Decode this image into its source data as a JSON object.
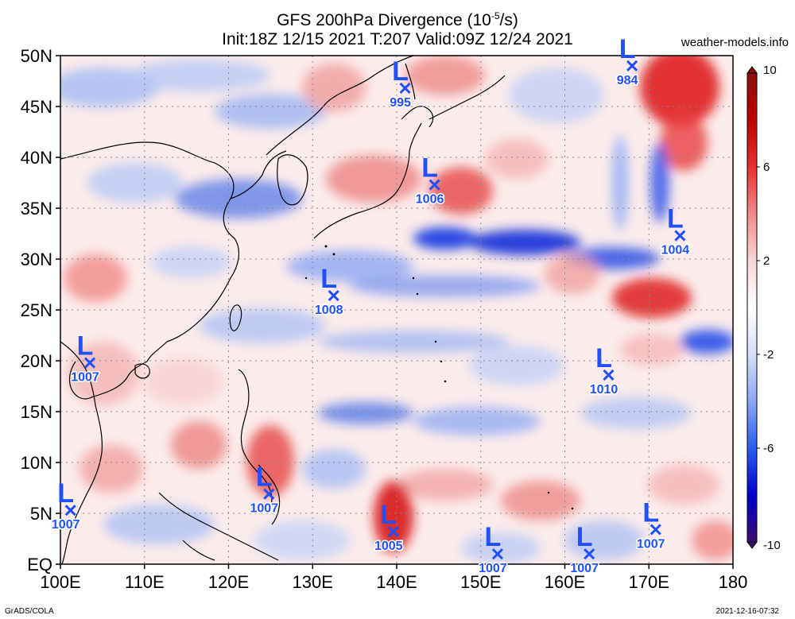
{
  "header": {
    "title_main": "GFS 200hPa Divergence (10",
    "title_exp": "-5",
    "title_unit": "/s)",
    "subtitle": "Init:18Z 12/15 2021 T:207 Valid:09Z 12/24 2021",
    "site": "weather-models.info"
  },
  "footer": {
    "credit": "GrADS/COLA",
    "timestamp": "2021-12-16-07:32"
  },
  "map": {
    "lon_range": [
      100,
      180
    ],
    "lat_range": [
      0,
      50
    ],
    "lon_labels": [
      "100E",
      "110E",
      "120E",
      "130E",
      "140E",
      "150E",
      "160E",
      "170E",
      "180"
    ],
    "lat_labels": [
      "EQ",
      "5N",
      "10N",
      "15N",
      "20N",
      "25N",
      "30N",
      "35N",
      "40N",
      "45N",
      "50N"
    ],
    "colorbar": {
      "range": [
        -10,
        10
      ],
      "labels": [
        "10",
        "6",
        "2",
        "-2",
        "-6",
        "-10"
      ],
      "label_values": [
        10,
        6,
        2,
        -2,
        -6,
        -10
      ],
      "colors": [
        "#3a0a6e",
        "#0000d0",
        "#2b5cf0",
        "#8aa7f5",
        "#d6dff8",
        "#ffffff",
        "#f8d6d6",
        "#f28a8a",
        "#e83030",
        "#c00000",
        "#8a0e0e"
      ]
    },
    "lows": [
      {
        "label": "L",
        "pressure": "995",
        "lon": 141.0,
        "lat": 46.8
      },
      {
        "label": "L",
        "pressure": "984",
        "lon": 168.0,
        "lat": 49.0
      },
      {
        "label": "L",
        "pressure": "1006",
        "lon": 144.5,
        "lat": 37.3
      },
      {
        "label": "L",
        "pressure": "1004",
        "lon": 173.7,
        "lat": 32.3
      },
      {
        "label": "L",
        "pressure": "1008",
        "lon": 132.5,
        "lat": 26.4
      },
      {
        "label": "L",
        "pressure": "1007",
        "lon": 103.5,
        "lat": 19.8
      },
      {
        "label": "L",
        "pressure": "1010",
        "lon": 165.2,
        "lat": 18.6
      },
      {
        "label": "L",
        "pressure": "1007",
        "lon": 101.2,
        "lat": 5.3
      },
      {
        "label": "L",
        "pressure": "1007",
        "lon": 124.8,
        "lat": 6.9
      },
      {
        "label": "L",
        "pressure": "1005",
        "lon": 139.6,
        "lat": 3.2
      },
      {
        "label": "L",
        "pressure": "1007",
        "lon": 152.0,
        "lat": 1.0
      },
      {
        "label": "L",
        "pressure": "1007",
        "lon": 162.9,
        "lat": 1.0
      },
      {
        "label": "L",
        "pressure": "1007",
        "lon": 170.8,
        "lat": 3.4
      }
    ]
  }
}
